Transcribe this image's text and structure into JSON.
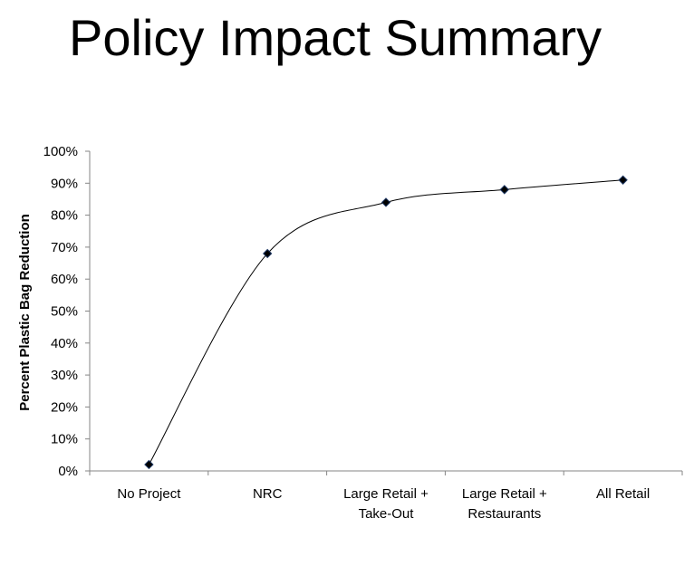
{
  "title": "Policy Impact Summary",
  "chart_data": {
    "type": "line",
    "title": "Policy Impact Summary",
    "xlabel": "",
    "ylabel": "Percent Plastic Bag Reduction",
    "categories": [
      [
        "No Project"
      ],
      [
        "NRC"
      ],
      [
        "Large Retail +",
        "Take-Out"
      ],
      [
        "Large Retail +",
        "Restaurants"
      ],
      [
        "All Retail"
      ]
    ],
    "values": [
      2,
      68,
      84,
      88,
      91
    ],
    "ylim": [
      0,
      100
    ],
    "yticks": [
      0,
      10,
      20,
      30,
      40,
      50,
      60,
      70,
      80,
      90,
      100
    ],
    "ytick_suffix": "%",
    "smoothed": true,
    "marker": "diamond",
    "grid": false,
    "legend": "none",
    "colors": {
      "line": "#000000",
      "marker_fill": "#000000",
      "marker_edge": "#1F3864",
      "axis": "#868686"
    }
  }
}
